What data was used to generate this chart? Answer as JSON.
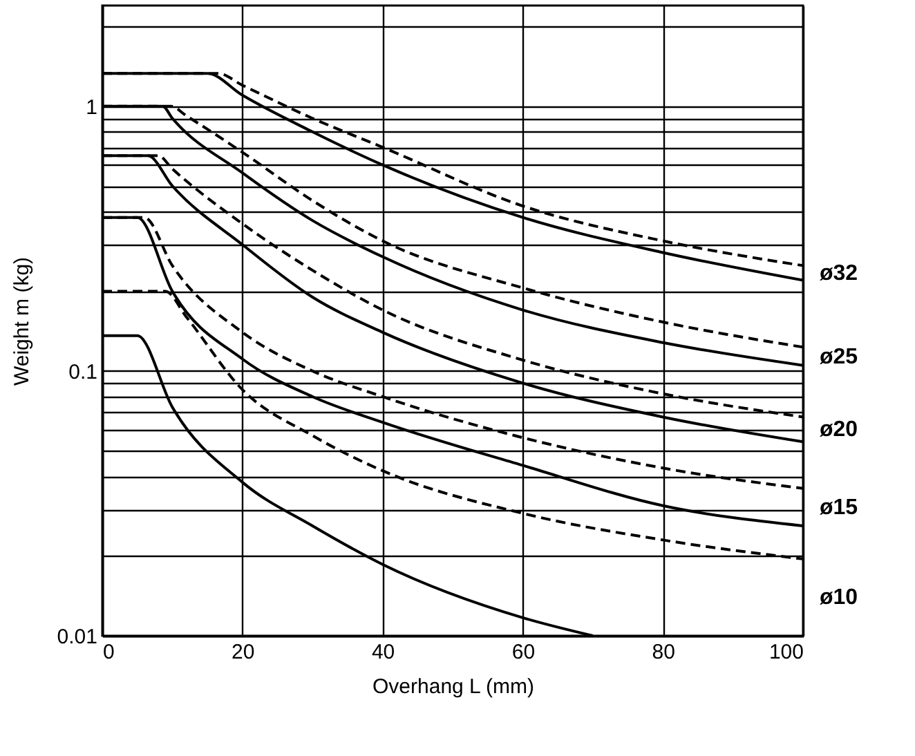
{
  "chart_data": {
    "type": "line",
    "xlabel": "Overhang L (mm)",
    "ylabel": "Weight m (kg)",
    "log": "y",
    "grid": true,
    "xlim": [
      0,
      100
    ],
    "xticks": [
      0,
      20,
      40,
      60,
      80,
      100
    ],
    "ylim": [
      0.01,
      2.4
    ],
    "yticks": [
      0.01,
      {
        "value": 0.02,
        "label": null
      },
      {
        "value": 0.03,
        "label": null
      },
      {
        "value": 0.04,
        "label": null
      },
      {
        "value": 0.05,
        "label": null
      },
      {
        "value": 0.06,
        "label": null
      },
      {
        "value": 0.07,
        "label": null
      },
      {
        "value": 0.08,
        "label": null
      },
      {
        "value": 0.09,
        "label": null
      },
      0.1,
      {
        "value": 0.2,
        "label": null
      },
      {
        "value": 0.3,
        "label": null
      },
      {
        "value": 0.4,
        "label": null
      },
      {
        "value": 0.5,
        "label": null
      },
      {
        "value": 0.6,
        "label": null
      },
      {
        "value": 0.7,
        "label": null
      },
      {
        "value": 0.8,
        "label": null
      },
      {
        "value": 0.9,
        "label": null
      },
      1,
      {
        "value": 2,
        "label": null
      }
    ],
    "series": [
      {
        "name": "ø32",
        "color": "#000000",
        "line_style": "solid",
        "x": [
          0,
          15,
          20,
          30,
          40,
          60,
          80,
          100
        ],
        "values": [
          1.33,
          1.33,
          1.1,
          0.8,
          0.6,
          0.38,
          0.28,
          0.22
        ]
      },
      {
        "color": "#000000",
        "line_style": "dashed",
        "x": [
          0,
          16.5,
          20,
          30,
          40,
          60,
          80,
          100
        ],
        "values": [
          1.33,
          1.33,
          1.2,
          0.9,
          0.7,
          0.42,
          0.31,
          0.25
        ]
      },
      {
        "name": "ø25",
        "color": "#000000",
        "line_style": "solid",
        "x": [
          0,
          8.6,
          10,
          20,
          30,
          40,
          60,
          80,
          100
        ],
        "values": [
          1,
          1,
          0.9,
          0.56,
          0.37,
          0.27,
          0.17,
          0.128,
          0.105
        ]
      },
      {
        "color": "#000000",
        "line_style": "dashed",
        "x": [
          0,
          9.8,
          12,
          20,
          30,
          40,
          60,
          80,
          100
        ],
        "values": [
          1,
          1,
          0.92,
          0.67,
          0.44,
          0.31,
          0.206,
          0.153,
          0.123
        ]
      },
      {
        "name": "ø20",
        "color": "#000000",
        "line_style": "solid",
        "x": [
          0,
          6.5,
          10,
          20,
          30,
          40,
          60,
          80,
          100
        ],
        "values": [
          0.65,
          0.65,
          0.5,
          0.3,
          0.19,
          0.14,
          0.09,
          0.067,
          0.054
        ]
      },
      {
        "color": "#000000",
        "line_style": "dashed",
        "x": [
          0,
          8,
          10,
          20,
          30,
          40,
          60,
          80,
          100
        ],
        "values": [
          0.65,
          0.65,
          0.58,
          0.36,
          0.24,
          0.17,
          0.11,
          0.082,
          0.067
        ]
      },
      {
        "name": "ø15",
        "color": "#000000",
        "line_style": "solid",
        "x": [
          0,
          5,
          10,
          20,
          30,
          40,
          60,
          80,
          100
        ],
        "values": [
          0.38,
          0.38,
          0.2,
          0.111,
          0.08,
          0.064,
          0.044,
          0.031,
          0.026
        ]
      },
      {
        "color": "#000000",
        "line_style": "dashed",
        "x": [
          0,
          6,
          10,
          20,
          30,
          40,
          60,
          80,
          100
        ],
        "values": [
          0.38,
          0.38,
          0.25,
          0.14,
          0.1,
          0.08,
          0.056,
          0.043,
          0.036
        ]
      },
      {
        "name": "ø10",
        "color": "#000000",
        "line_style": "solid",
        "x": [
          0,
          5,
          10,
          20,
          30,
          40,
          60,
          70
        ],
        "values": [
          0.136,
          0.136,
          0.073,
          0.038,
          0.026,
          0.0186,
          0.0117,
          0.01
        ]
      },
      {
        "color": "#000000",
        "line_style": "dashed",
        "x": [
          0,
          9,
          12,
          20,
          30,
          40,
          60,
          80,
          100
        ],
        "values": [
          0.2,
          0.2,
          0.16,
          0.085,
          0.057,
          0.042,
          0.029,
          0.023,
          0.0195
        ]
      }
    ]
  }
}
